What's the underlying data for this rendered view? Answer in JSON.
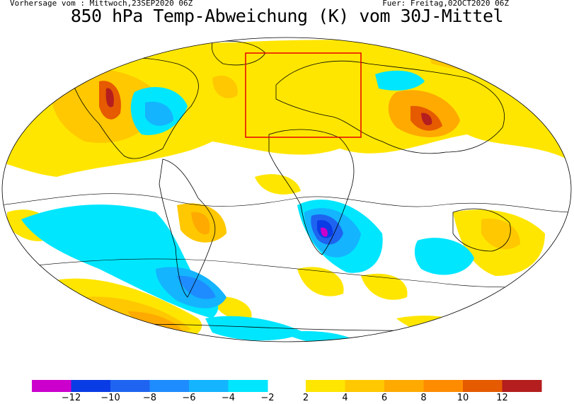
{
  "header": {
    "forecast_from": "Vorhersage vom : Mittwoch,23SEP2020 06Z",
    "valid_for": "Fuer: Freitag,02OCT2020 06Z",
    "title": "850 hPa Temp-Abweichung (K) vom 30J-Mittel"
  },
  "legend": {
    "negative": [
      {
        "color": "#cc00cc"
      },
      {
        "color": "#0a3ce6"
      },
      {
        "color": "#1e64f0"
      },
      {
        "color": "#1e8cff"
      },
      {
        "color": "#14b4ff"
      },
      {
        "color": "#00e6ff"
      }
    ],
    "positive": [
      {
        "color": "#ffe600"
      },
      {
        "color": "#ffc800"
      },
      {
        "color": "#ffaa00"
      },
      {
        "color": "#ff8c00"
      },
      {
        "color": "#e65a00"
      },
      {
        "color": "#b41e1e"
      }
    ],
    "tick_labels": [
      "−12",
      "−10",
      "−8",
      "−6",
      "−4",
      "−2",
      "2",
      "4",
      "6",
      "8",
      "10",
      "12"
    ]
  },
  "map": {
    "highlight_box_color": "#e60000",
    "ocean_color": "#ffffff"
  }
}
